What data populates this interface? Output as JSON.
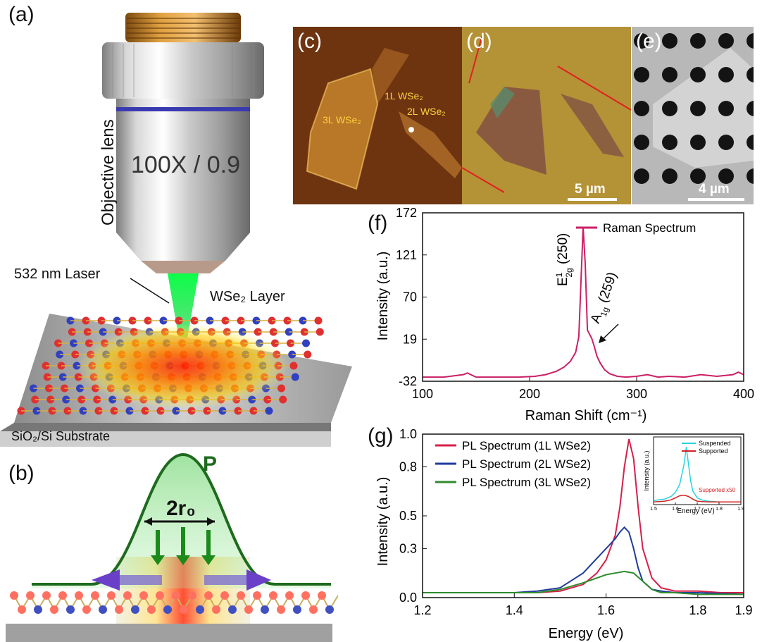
{
  "labels": {
    "a": "(a)",
    "b": "(b)",
    "c": "(c)",
    "d": "(d)",
    "e": "(e)",
    "f": "(f)",
    "g": "(g)"
  },
  "panel_a": {
    "lens_text": "100X / 0.9",
    "lens_label": "Objective lens",
    "laser_label": "532 nm Laser",
    "layer_label": "WSe₂ Layer",
    "substrate_label": "SiO₂/Si Substrate"
  },
  "panel_b": {
    "p_label": "P",
    "r_label": "2r₀"
  },
  "panel_c": {
    "l1": "1L WSe₂",
    "l2": "2L WSe₂",
    "l3": "3L WSe₂"
  },
  "panel_d": {
    "scale": "5 µm"
  },
  "panel_e": {
    "scale": "4 µm"
  },
  "colors": {
    "raman": "#cc1f66",
    "pl1": "#d61f4a",
    "pl2": "#1f3c9b",
    "pl3": "#2e8b2e",
    "suspended": "#2ad4e0",
    "supported": "#d42020"
  },
  "chart_data": [
    {
      "type": "line",
      "panel": "f",
      "xlabel": "Raman Shift (cm⁻¹)",
      "ylabel": "Intensity (a.u.)",
      "xlim": [
        100,
        400
      ],
      "ylim": [
        -32,
        172
      ],
      "xticks": [
        "100",
        "200",
        "300",
        "400"
      ],
      "yticks": [
        "-32",
        "19",
        "70",
        "121",
        "172"
      ],
      "legend": "top-right",
      "series": [
        {
          "name": "Raman Spectrum",
          "x": [
            100,
            120,
            138,
            142,
            150,
            170,
            190,
            205,
            215,
            225,
            232,
            238,
            243,
            246,
            248,
            250,
            252,
            254,
            256,
            258,
            260,
            263,
            266,
            270,
            275,
            282,
            290,
            300,
            310,
            320,
            330,
            345,
            360,
            375,
            390,
            395,
            400
          ],
          "y": [
            -27,
            -27,
            -24,
            -22,
            -27,
            -27,
            -27,
            -26,
            -24,
            -20,
            -15,
            -8,
            3,
            22,
            90,
            155,
            110,
            30,
            25,
            20,
            12,
            -2,
            -10,
            -18,
            -23,
            -26,
            -27,
            -26,
            -24,
            -27,
            -26,
            -27,
            -24,
            -26,
            -24,
            -21,
            -24
          ]
        }
      ],
      "annotations": [
        {
          "text": "E¹₂g (250)",
          "sup": "1",
          "sub": "2g",
          "main": "E",
          "rest": " (250)"
        },
        {
          "text": "A₁g (259)",
          "main": "A",
          "sub": "1g",
          "rest": " (259)"
        }
      ]
    },
    {
      "type": "line",
      "panel": "g",
      "xlabel": "Energy (eV)",
      "ylabel": "Intensity (a.u.)",
      "xlim": [
        1.2,
        1.9
      ],
      "ylim": [
        0,
        1.0
      ],
      "xticks": [
        "1.2",
        "1.4",
        "1.6",
        "1.8",
        "1.9"
      ],
      "yticks": [
        "0.0",
        "0.3",
        "0.5",
        "0.8",
        "1.0"
      ],
      "legend": "top-left",
      "series": [
        {
          "name": "PL Spectrum (1L WSe2)",
          "x": [
            1.2,
            1.3,
            1.4,
            1.45,
            1.5,
            1.55,
            1.58,
            1.6,
            1.62,
            1.63,
            1.64,
            1.65,
            1.66,
            1.67,
            1.68,
            1.7,
            1.72,
            1.75,
            1.8,
            1.85,
            1.9
          ],
          "y": [
            0.03,
            0.03,
            0.03,
            0.03,
            0.04,
            0.08,
            0.15,
            0.23,
            0.38,
            0.55,
            0.8,
            0.97,
            0.85,
            0.55,
            0.3,
            0.12,
            0.06,
            0.04,
            0.04,
            0.03,
            0.03
          ]
        },
        {
          "name": "PL Spectrum (2L WSe2)",
          "x": [
            1.2,
            1.3,
            1.4,
            1.45,
            1.5,
            1.55,
            1.58,
            1.6,
            1.62,
            1.63,
            1.64,
            1.65,
            1.66,
            1.67,
            1.68,
            1.7,
            1.72,
            1.75,
            1.8,
            1.9
          ],
          "y": [
            0.03,
            0.03,
            0.03,
            0.04,
            0.06,
            0.15,
            0.24,
            0.3,
            0.36,
            0.4,
            0.43,
            0.4,
            0.3,
            0.18,
            0.1,
            0.05,
            0.04,
            0.03,
            0.03,
            0.02
          ]
        },
        {
          "name": "PL Spectrum (3L WSe2)",
          "x": [
            1.2,
            1.3,
            1.4,
            1.45,
            1.5,
            1.55,
            1.58,
            1.6,
            1.62,
            1.64,
            1.66,
            1.68,
            1.7,
            1.72,
            1.75,
            1.8,
            1.9
          ],
          "y": [
            0.03,
            0.03,
            0.03,
            0.03,
            0.05,
            0.09,
            0.12,
            0.14,
            0.15,
            0.16,
            0.15,
            0.1,
            0.05,
            0.03,
            0.03,
            0.02,
            0.02
          ]
        }
      ],
      "inset": {
        "xlabel": "Energy (eV)",
        "ylabel": "Intensity (a.u.)",
        "xticks": [
          "1.5",
          "1.6",
          "1.7",
          "1.8",
          "1.9"
        ],
        "xlim": [
          1.5,
          1.9
        ],
        "ylim": [
          0,
          1.0
        ],
        "note": "Supported x50",
        "series": [
          {
            "name": "Suspended",
            "x": [
              1.5,
              1.55,
              1.58,
              1.6,
              1.62,
              1.64,
              1.65,
              1.66,
              1.67,
              1.68,
              1.7,
              1.72,
              1.75,
              1.8,
              1.85,
              1.9
            ],
            "y": [
              0.06,
              0.08,
              0.12,
              0.18,
              0.3,
              0.6,
              0.85,
              0.6,
              0.35,
              0.2,
              0.1,
              0.07,
              0.05,
              0.04,
              0.04,
              0.04
            ]
          },
          {
            "name": "Supported",
            "x": [
              1.5,
              1.55,
              1.58,
              1.6,
              1.62,
              1.64,
              1.66,
              1.68,
              1.7,
              1.75,
              1.8,
              1.9
            ],
            "y": [
              0.04,
              0.05,
              0.07,
              0.1,
              0.13,
              0.14,
              0.12,
              0.08,
              0.05,
              0.04,
              0.04,
              0.04
            ]
          }
        ]
      }
    }
  ]
}
